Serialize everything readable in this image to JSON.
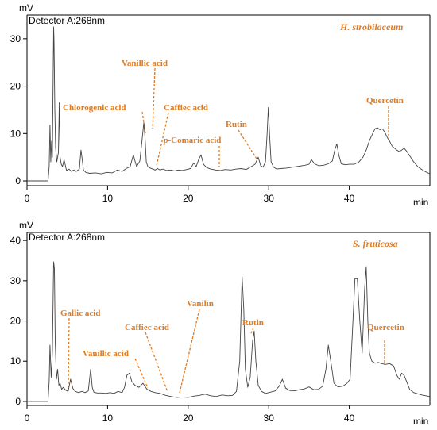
{
  "chart_data": [
    {
      "type": "line",
      "unit_label": "mV",
      "x_unit_label": "min",
      "detector_label": "Detector A:268nm",
      "sample_title": "H. strobilaceum",
      "xlim": [
        0,
        50
      ],
      "ylim": [
        -1,
        35
      ],
      "x_ticks": [
        0,
        10,
        20,
        30,
        40
      ],
      "y_ticks": [
        0,
        10,
        20,
        30
      ],
      "series": [
        {
          "x": [
            0,
            2.6,
            2.75,
            2.85,
            2.95,
            3.05,
            3.15,
            3.3,
            3.35,
            3.45,
            3.55,
            3.7,
            3.9,
            4.0,
            4.1,
            4.25,
            4.4,
            4.6,
            4.9,
            5.2,
            5.5,
            5.8,
            6.1,
            6.5,
            6.7,
            6.85,
            7.0,
            7.3,
            7.8,
            8.5,
            9.2,
            9.9,
            10.6,
            11.2,
            11.8,
            12.3,
            12.8,
            13.2,
            13.6,
            14.0,
            14.3,
            14.5,
            14.65,
            14.8,
            15.0,
            15.3,
            15.6,
            15.9,
            16.2,
            16.5,
            16.9,
            17.3,
            17.8,
            18.3,
            18.8,
            19.3,
            19.8,
            20.3,
            20.7,
            21.0,
            21.3,
            21.6,
            21.9,
            22.3,
            22.8,
            23.4,
            24.0,
            24.6,
            25.3,
            26.0,
            26.6,
            27.2,
            27.8,
            28.3,
            28.7,
            29.0,
            29.3,
            29.6,
            29.8,
            29.95,
            30.1,
            30.3,
            30.6,
            31.0,
            31.5,
            32.2,
            33.0,
            33.8,
            34.5,
            35.0,
            35.3,
            35.7,
            36.2,
            36.8,
            37.4,
            37.9,
            38.2,
            38.45,
            38.7,
            39.0,
            39.5,
            40.0,
            40.6,
            41.2,
            41.7,
            42.1,
            42.5,
            42.9,
            43.2,
            43.5,
            43.8,
            44.1,
            44.4,
            44.7,
            45.0,
            45.3,
            45.6,
            45.9,
            46.2,
            46.5,
            46.8,
            47.1,
            47.5,
            48.0,
            48.5,
            49.0,
            49.5,
            50.0
          ],
          "y": [
            0,
            0,
            3,
            11.8,
            4,
            8.4,
            5,
            32.5,
            29.5,
            15,
            7,
            4,
            6,
            16.5,
            5,
            3.5,
            3,
            4.5,
            2.2,
            2.5,
            2,
            2.3,
            2,
            2.5,
            6.5,
            4.5,
            2.3,
            1.8,
            1.6,
            1.7,
            1.5,
            1.8,
            1.7,
            2.3,
            2,
            2.6,
            3,
            5.5,
            3,
            4.2,
            9,
            12.3,
            9,
            4,
            3,
            2.7,
            2.5,
            2.3,
            2.6,
            2.3,
            2.5,
            2.2,
            2.3,
            2.1,
            2.3,
            2.2,
            2.4,
            2.6,
            3.8,
            3,
            4.5,
            5.5,
            3.5,
            2.8,
            2.5,
            2.3,
            2.2,
            2.4,
            2.3,
            2.5,
            2.6,
            2.4,
            3,
            3.5,
            5,
            3.2,
            2.9,
            4,
            10,
            15.5,
            10,
            4,
            2.9,
            2.5,
            2.6,
            2.7,
            2.9,
            3.1,
            3.3,
            3.5,
            4.5,
            3.6,
            3.2,
            3.3,
            3.6,
            4.2,
            6.5,
            7.8,
            5.5,
            3.6,
            3.4,
            3.5,
            3.5,
            4,
            5,
            6.5,
            8.5,
            10,
            11,
            11.2,
            10.8,
            11,
            10.3,
            9.2,
            8.4,
            7.4,
            6.9,
            6.5,
            6.2,
            6.5,
            6.9,
            6.3,
            5.3,
            4,
            3,
            2.4,
            1.9,
            1.5
          ]
        }
      ],
      "annotations": [
        {
          "label": "Chlorogenic acid",
          "x": 14.6
        },
        {
          "label": "Vanillic acid",
          "x": 15.4
        },
        {
          "label": "Caffiec acid",
          "x": 16.2
        },
        {
          "label_italic": "p",
          "label": "-Comaric acid",
          "x": 24.0
        },
        {
          "label": "Rutin",
          "x": 28.8
        },
        {
          "label": "Quercetin",
          "x": 45.1
        }
      ]
    },
    {
      "type": "line",
      "unit_label": "mV",
      "x_unit_label": "min",
      "detector_label": "Detector A:268nm",
      "sample_title": "S. fruticosa",
      "xlim": [
        0,
        50
      ],
      "ylim": [
        -1,
        42
      ],
      "x_ticks": [
        0,
        10,
        20,
        30,
        40
      ],
      "y_ticks": [
        0,
        10,
        20,
        30,
        40
      ],
      "series": [
        {
          "x": [
            0,
            2.6,
            2.75,
            2.85,
            3.0,
            3.15,
            3.3,
            3.4,
            3.5,
            3.65,
            3.8,
            3.95,
            4.1,
            4.3,
            4.5,
            4.8,
            5.1,
            5.4,
            5.7,
            6.0,
            6.4,
            6.8,
            7.2,
            7.6,
            7.9,
            8.1,
            8.3,
            8.7,
            9.2,
            9.8,
            10.3,
            10.8,
            11.3,
            11.8,
            12.1,
            12.4,
            12.7,
            13.0,
            13.4,
            13.9,
            14.4,
            14.9,
            15.4,
            15.9,
            16.5,
            17.2,
            17.9,
            18.6,
            19.3,
            20.0,
            20.7,
            21.4,
            22.1,
            22.8,
            23.5,
            24.2,
            24.9,
            25.5,
            26.0,
            26.4,
            26.7,
            26.9,
            27.1,
            27.4,
            27.7,
            28.0,
            28.2,
            28.4,
            28.7,
            29.1,
            29.6,
            30.2,
            30.8,
            31.3,
            31.7,
            32.1,
            32.6,
            33.2,
            33.8,
            34.4,
            35.0,
            35.6,
            36.2,
            36.7,
            37.1,
            37.4,
            37.7,
            38.1,
            38.6,
            39.2,
            39.7,
            40.1,
            40.4,
            40.7,
            41.0,
            41.3,
            41.6,
            41.9,
            42.1,
            42.3,
            42.5,
            42.8,
            43.2,
            43.6,
            44.0,
            44.5,
            45.0,
            45.5,
            45.9,
            46.2,
            46.5,
            46.8,
            47.1,
            47.5,
            48.0,
            48.5,
            49.0,
            49.5,
            50.0
          ],
          "y": [
            0,
            0,
            5,
            14,
            6,
            12,
            34.7,
            33,
            15,
            5.5,
            8,
            4,
            4.5,
            3,
            3.5,
            2.8,
            2.5,
            5.5,
            3.2,
            2.5,
            2.2,
            2.5,
            2.2,
            2.6,
            8,
            3.5,
            2.3,
            2.1,
            2.1,
            2,
            2.2,
            2,
            2.5,
            2.2,
            3.5,
            6.5,
            7,
            5,
            4,
            3.5,
            4.5,
            3,
            2.5,
            2.2,
            2,
            1.5,
            1.2,
            1,
            1.1,
            1,
            1.3,
            1.5,
            1.8,
            1.4,
            1.2,
            1.6,
            1.4,
            1.5,
            2.5,
            10,
            31,
            23,
            8,
            3.5,
            6,
            15,
            17.5,
            10,
            4,
            2.5,
            2,
            2.3,
            2.6,
            3.8,
            5.5,
            3.3,
            2.7,
            2.6,
            2.9,
            3.1,
            3.6,
            2.9,
            3,
            3.8,
            8,
            14,
            10,
            4.5,
            3.6,
            3.8,
            4.5,
            5.5,
            18,
            30.5,
            30.5,
            20,
            12,
            28,
            33.5,
            20,
            12,
            10,
            9.5,
            9.7,
            9.4,
            9.2,
            9.4,
            8.8,
            6.5,
            5.5,
            7,
            6.5,
            5,
            3,
            2.2,
            1.9,
            1.6,
            1.4,
            1.2
          ]
        }
      ],
      "annotations": [
        {
          "label": "Gallic acid",
          "x": 5.2
        },
        {
          "label": "Vanillic acid",
          "x": 15.4
        },
        {
          "label": "Caffiec acid",
          "x": 18.0
        },
        {
          "label": "Vanilin",
          "x": 19.5
        },
        {
          "label": "Rutin",
          "x": 27.9
        },
        {
          "label": "Quercetin",
          "x": 45.1
        }
      ]
    }
  ]
}
